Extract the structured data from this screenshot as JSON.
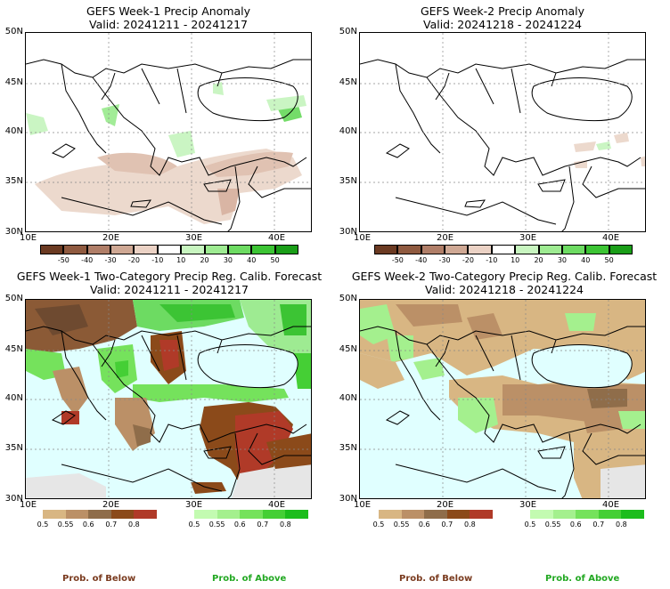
{
  "panels": [
    {
      "title": "GEFS Week-1 Precip Anomaly",
      "valid": "Valid: 20241211 - 20241217"
    },
    {
      "title": "GEFS Week-2 Precip Anomaly",
      "valid": "Valid: 20241218 - 20241224"
    },
    {
      "title": "GEFS Week-1 Two-Category Precip Reg. Calib. Forecast",
      "valid": "Valid: 20241211 - 20241217"
    },
    {
      "title": "GEFS Week-2 Two-Category Precip Reg. Calib. Forecast",
      "valid": "Valid: 20241218 - 20241224"
    }
  ],
  "lat_labels": [
    "50N",
    "45N",
    "40N",
    "35N",
    "30N"
  ],
  "lon_labels": [
    "10E",
    "20E",
    "30E",
    "40E"
  ],
  "anomaly_colorbar": {
    "ticks": [
      "-50",
      "-40",
      "-30",
      "-20",
      "-10",
      "10",
      "20",
      "30",
      "40",
      "50"
    ],
    "colors": [
      "#6b3a22",
      "#8f5a40",
      "#b07e68",
      "#cfa894",
      "#ebd2c5",
      "#ffffff",
      "#c8f5c0",
      "#9eeb92",
      "#6ddb62",
      "#3cc434",
      "#1a9e18"
    ]
  },
  "prob_below_colorbar": {
    "ticks": [
      "0.5",
      "0.55",
      "0.6",
      "0.7",
      "0.8"
    ],
    "colors": [
      "#d8b683",
      "#bb9067",
      "#8f6d4a",
      "#8b4a1a",
      "#b03a28"
    ]
  },
  "prob_above_colorbar": {
    "ticks": [
      "0.5",
      "0.55",
      "0.6",
      "0.7",
      "0.8"
    ],
    "colors": [
      "#c3fbb1",
      "#a4f08e",
      "#75e25c",
      "#45cf35",
      "#1cbd1c"
    ]
  },
  "footer": {
    "below": "Prob. of Below",
    "above": "Prob. of Above",
    "below_color": "#7a3b1f",
    "above_color": "#22a822"
  },
  "map_colors": {
    "sea": "#e0ffff",
    "land": "#ffffff",
    "nodata": "#e6e6e6"
  }
}
